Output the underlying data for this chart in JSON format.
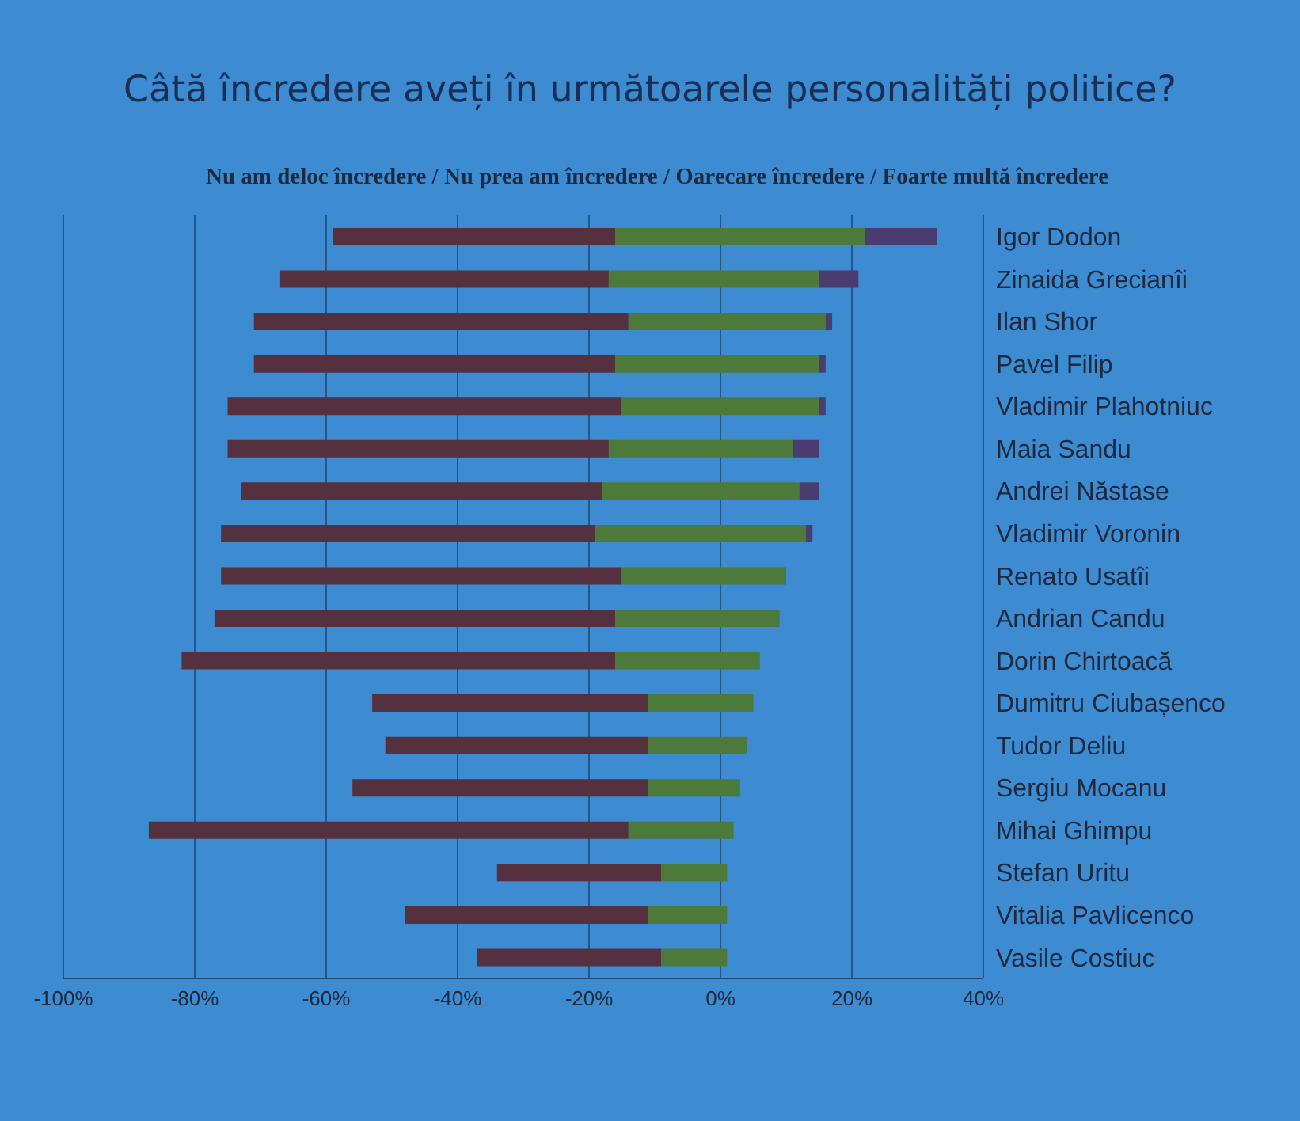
{
  "chart_data": {
    "type": "bar",
    "orientation": "horizontal",
    "title": "Câtă încredere aveți în următoarele personalități politice?",
    "subtitle": "Nu am deloc încredere / Nu prea am încredere / Oarecare încredere / Foarte multă încredere",
    "categories": [
      "Igor Dodon",
      "Zinaida Grecianîi",
      "Ilan Shor",
      "Pavel Filip",
      "Vladimir Plahotniuc",
      "Maia Sandu",
      "Andrei Năstase",
      "Vladimir Voronin",
      "Renato Usatîi",
      "Andrian Candu",
      "Dorin Chirtoacă",
      "Dumitru Ciubașenco",
      "Tudor Deliu",
      "Sergiu Mocanu",
      "Mihai Ghimpu",
      "Stefan Uritu",
      "Vitalia Pavlicenco",
      "Vasile Costiuc"
    ],
    "series": [
      {
        "color": "#55303f",
        "base": [
          -59,
          -67,
          -71,
          -71,
          -75,
          -75,
          -73,
          -76,
          -76,
          -77,
          -82,
          -53,
          -51,
          -56,
          -87,
          -34,
          -48,
          -37
        ],
        "values": [
          43,
          50,
          57,
          55,
          60,
          58,
          55,
          57,
          61,
          61,
          66,
          42,
          40,
          45,
          73,
          25,
          37,
          28
        ]
      },
      {
        "color": "#4d7a3a",
        "base": [
          -16,
          -17,
          -14,
          -16,
          -15,
          -17,
          -18,
          -19,
          -15,
          -16,
          -16,
          -11,
          -11,
          -11,
          -14,
          -9,
          -11,
          -9
        ],
        "values": [
          38,
          32,
          30,
          31,
          30,
          28,
          30,
          32,
          25,
          25,
          22,
          16,
          15,
          14,
          16,
          10,
          12,
          10
        ]
      },
      {
        "color": "#4a3c6e",
        "base": [
          22,
          15,
          16,
          15,
          15,
          11,
          12,
          13,
          null,
          null,
          null,
          null,
          null,
          null,
          null,
          null,
          null,
          null
        ],
        "values": [
          11,
          6,
          1,
          1,
          1,
          4,
          3,
          1,
          null,
          null,
          null,
          null,
          null,
          null,
          null,
          null,
          null,
          null
        ]
      }
    ],
    "xlim": [
      -100,
      40
    ],
    "xticks": [
      {
        "value": -100,
        "label": "-100%"
      },
      {
        "value": -80,
        "label": "-80%"
      },
      {
        "value": -60,
        "label": "-60%"
      },
      {
        "value": -40,
        "label": "-40%"
      },
      {
        "value": -20,
        "label": "-20%"
      },
      {
        "value": 0,
        "label": "0%"
      },
      {
        "value": 20,
        "label": "20%"
      },
      {
        "value": 40,
        "label": "40%"
      }
    ],
    "grid": "x"
  }
}
